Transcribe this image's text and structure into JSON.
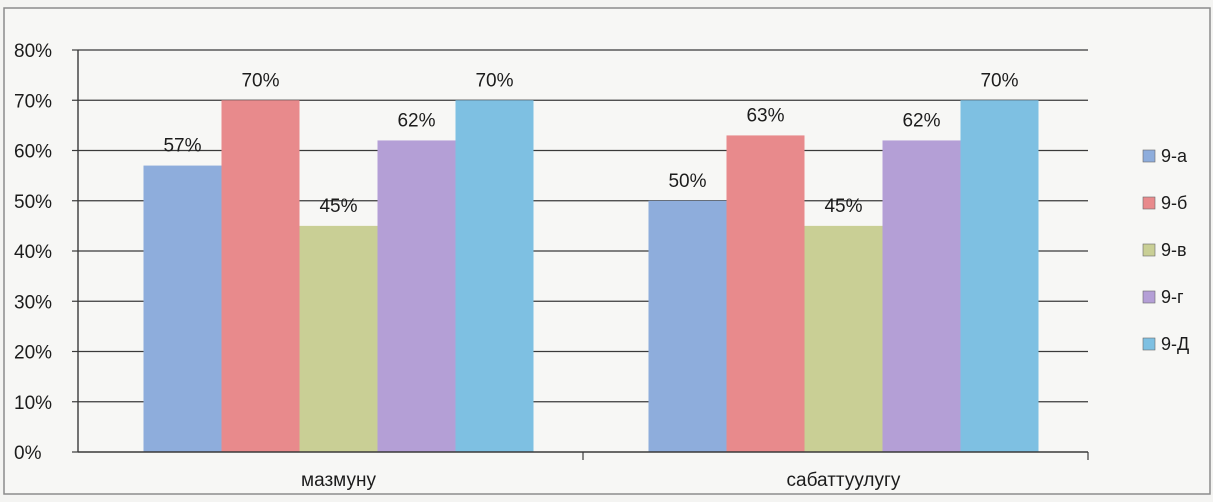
{
  "chart_data": {
    "type": "bar",
    "categories": [
      "мазмуну",
      "сабаттуулугу"
    ],
    "series": [
      {
        "name": "9-а",
        "values": [
          57,
          50
        ],
        "labels": [
          "57%",
          "50%"
        ],
        "color": "#8eaddc"
      },
      {
        "name": "9-б",
        "values": [
          70,
          63
        ],
        "labels": [
          "70%",
          "63%"
        ],
        "color": "#e88a8c"
      },
      {
        "name": "9-в",
        "values": [
          45,
          45
        ],
        "labels": [
          "45%",
          "45%"
        ],
        "color": "#c9cf95"
      },
      {
        "name": "9-г",
        "values": [
          62,
          62
        ],
        "labels": [
          "62%",
          "62%"
        ],
        "color": "#b49fd6"
      },
      {
        "name": "9-Д",
        "values": [
          70,
          70
        ],
        "labels": [
          "70%",
          "70%"
        ],
        "color": "#7ec0e2"
      }
    ],
    "yticks": [
      "0%",
      "10%",
      "20%",
      "30%",
      "40%",
      "50%",
      "60%",
      "70%",
      "80%"
    ],
    "ylim": [
      0,
      80
    ],
    "grid": true,
    "legend": "right"
  }
}
